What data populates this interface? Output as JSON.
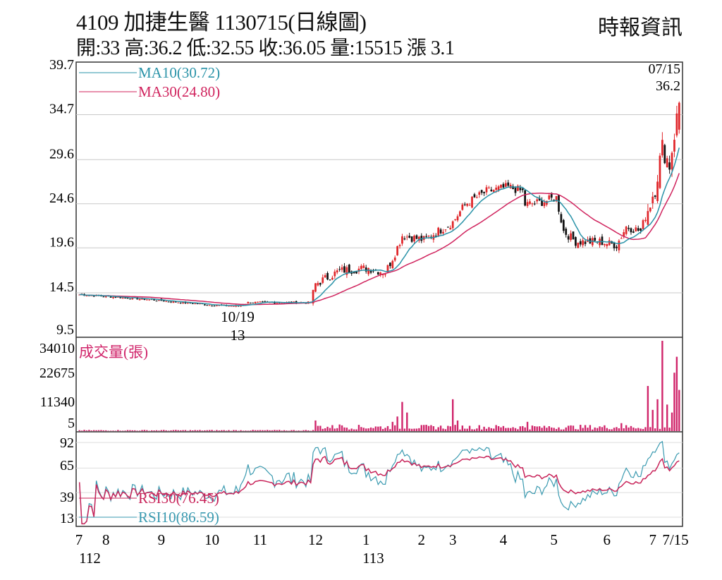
{
  "header": {
    "title": "4109  加捷生醫 1130715(日線圖)",
    "source": "時報資訊",
    "stats": "開:33 高:36.2 低:32.55 收:36.05 量:15515 漲 3.1"
  },
  "colors": {
    "up": "#e0262a",
    "down": "#111111",
    "ma10": "#2a93a8",
    "ma30": "#d0245e",
    "volume": "#d0246a",
    "rsi30": "#c8245a",
    "rsi10": "#3a9ab0",
    "grid": "#c8c8c8"
  },
  "chart_data": [
    {
      "type": "candlestick",
      "title": "Price",
      "ylim": [
        9.5,
        39.7
      ],
      "yticks": [
        "39.7",
        "34.7",
        "29.6",
        "24.6",
        "19.6",
        "14.5",
        "9.5"
      ],
      "ytick_values": [
        39.7,
        34.7,
        29.6,
        24.6,
        19.6,
        14.5,
        9.5
      ],
      "legend": [
        {
          "name": "MA10(30.72)",
          "key": "ma10"
        },
        {
          "name": "MA30(24.80)",
          "key": "ma30"
        }
      ],
      "annotations": {
        "last_date": "07/15",
        "high": "36.2",
        "low_date": "10/19",
        "low": "13"
      },
      "close_keypoints_day_value": [
        [
          0,
          14.3
        ],
        [
          26,
          13.8
        ],
        [
          55,
          13.1
        ],
        [
          66,
          13.0
        ],
        [
          70,
          13.4
        ],
        [
          96,
          13.4
        ],
        [
          98,
          15.5
        ],
        [
          108,
          17.0
        ],
        [
          120,
          17.3
        ],
        [
          127,
          16.8
        ],
        [
          131,
          19.0
        ],
        [
          134,
          21.0
        ],
        [
          143,
          20.5
        ],
        [
          155,
          22.5
        ],
        [
          160,
          24.5
        ],
        [
          169,
          26.0
        ],
        [
          178,
          26.5
        ],
        [
          184,
          26.0
        ],
        [
          185,
          24.5
        ],
        [
          192,
          24.8
        ],
        [
          198,
          25.3
        ],
        [
          201,
          21.5
        ],
        [
          206,
          20.3
        ],
        [
          216,
          20.3
        ],
        [
          223,
          19.9
        ],
        [
          227,
          22.0
        ],
        [
          233,
          21.5
        ],
        [
          236,
          24.0
        ],
        [
          239,
          26.5
        ],
        [
          242,
          31.0
        ],
        [
          245,
          29.0
        ],
        [
          247,
          32.5
        ],
        [
          249,
          36.05
        ]
      ],
      "days": 250
    },
    {
      "type": "bar",
      "title": "成交量(張)",
      "ylim": [
        0,
        34010
      ],
      "yticks": [
        "34010",
        "22675",
        "11340",
        "5"
      ],
      "ytick_values": [
        34010,
        22675,
        11340,
        5
      ],
      "base_volume": [
        [
          0,
          300
        ],
        [
          98,
          1500
        ]
      ],
      "spikes_day_value": [
        [
          98,
          4000
        ],
        [
          100,
          2000
        ],
        [
          108,
          2500
        ],
        [
          130,
          3500
        ],
        [
          132,
          5500
        ],
        [
          134,
          11000
        ],
        [
          136,
          7000
        ],
        [
          155,
          12000
        ],
        [
          157,
          4000
        ],
        [
          186,
          3500
        ],
        [
          193,
          2000
        ],
        [
          225,
          3000
        ],
        [
          236,
          17000
        ],
        [
          238,
          8000
        ],
        [
          240,
          12000
        ],
        [
          242,
          34010
        ],
        [
          244,
          10000
        ],
        [
          246,
          7000
        ],
        [
          247,
          22000
        ],
        [
          248,
          28000
        ],
        [
          249,
          15515
        ]
      ]
    },
    {
      "type": "line",
      "title": "RSI",
      "ylim": [
        5,
        100
      ],
      "yticks": [
        "92",
        "65",
        "39",
        "13"
      ],
      "ytick_values": [
        92,
        65,
        39,
        13
      ],
      "legend": [
        {
          "name": "RSI30(76.45)",
          "key": "rsi30"
        },
        {
          "name": "RSI10(86.59)",
          "key": "rsi10"
        }
      ]
    }
  ],
  "xaxis": {
    "months": [
      {
        "label": "7",
        "day": 0
      },
      {
        "label": "8",
        "day": 11
      },
      {
        "label": "9",
        "day": 34
      },
      {
        "label": "10",
        "day": 55
      },
      {
        "label": "11",
        "day": 75
      },
      {
        "label": "12",
        "day": 98
      },
      {
        "label": "1",
        "day": 119
      },
      {
        "label": "2",
        "day": 142
      },
      {
        "label": "3",
        "day": 155
      },
      {
        "label": "4",
        "day": 176
      },
      {
        "label": "5",
        "day": 197
      },
      {
        "label": "6",
        "day": 219
      },
      {
        "label": "7",
        "day": 238
      },
      {
        "label": "7/15",
        "day": 249
      }
    ],
    "years": [
      {
        "label": "112",
        "day": 2
      },
      {
        "label": "113",
        "day": 122
      }
    ]
  }
}
